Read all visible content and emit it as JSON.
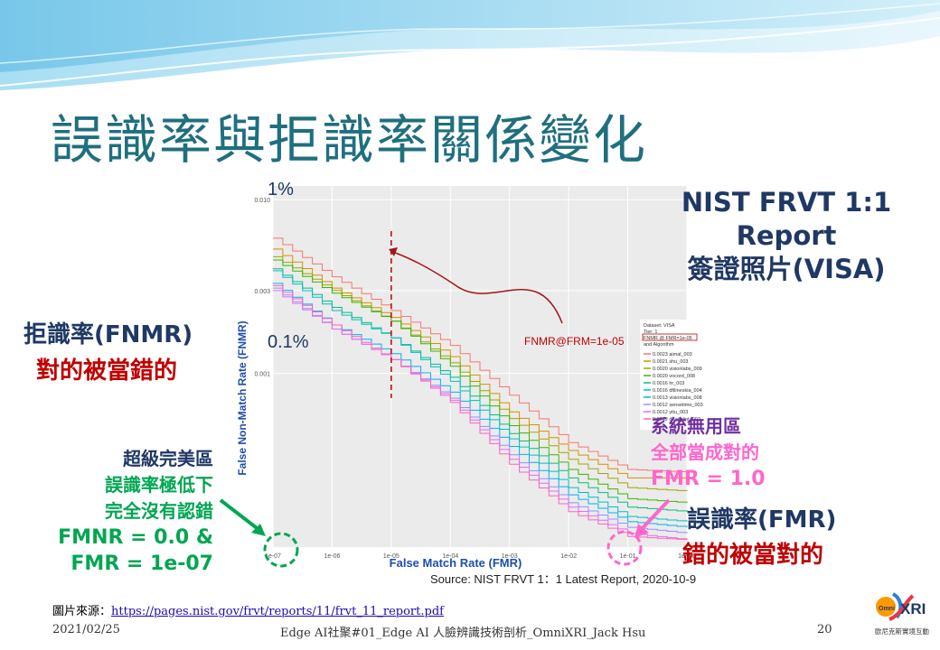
{
  "slide": {
    "title": "誤識率與拒識率關係變化",
    "nist_report": [
      "NIST FRVT 1:1",
      "Report",
      "簽證照片(VISA)"
    ],
    "left_axis_labels": {
      "fnmr_title": "拒識率(FNMR)",
      "fnmr_desc": "對的被當錯的"
    },
    "perfect_zone": [
      "超級完美區",
      "誤識率極低下",
      "完全沒有認錯",
      "FMNR = 0.0 &",
      "FMR = 1e-07"
    ],
    "useless_zone": [
      "系統無用區",
      "全部當成對的",
      "FMR = 1.0"
    ],
    "fmr_labels": {
      "fmr_title": "誤識率(FMR)",
      "fmr_desc": "錯的被當對的"
    },
    "image_source_label": "圖片來源：",
    "image_source_url": "https://pages.nist.gov/frvt/reports/11/frvt_11_report.pdf",
    "footer": {
      "date": "2021/02/25",
      "course": "Edge AI社聚#01_Edge AI 人臉辨識技術剖析_OmniXRI_Jack Hsu",
      "page": "20"
    },
    "logo": {
      "text_main": "XRI",
      "text_omni": "Omni",
      "caption": "歐尼克斯實境互動"
    },
    "colors": {
      "title": "#1f6f7f",
      "navy": "#1f3864",
      "red": "#c00000",
      "green": "#00a651",
      "pink": "#ff66cc",
      "purple": "#7030a0"
    }
  },
  "chart_data": {
    "type": "line",
    "title": "",
    "xlabel": "False Match Rate (FMR)",
    "ylabel": "False Non-Match Rate (FNMR)",
    "x_scale": "log",
    "y_scale": "log",
    "x_ticks": [
      "1e-07",
      "1e-06",
      "1e-05",
      "1e-04",
      "1e-03",
      "1e-02",
      "1e-01",
      "1e+00"
    ],
    "y_ticks": [
      "0.010",
      "0.003",
      "0.001"
    ],
    "y_tick_values": [
      0.01,
      0.003,
      0.001
    ],
    "xlim": [
      1e-07,
      1
    ],
    "ylim": [
      0.0001,
      0.012
    ],
    "annotations": {
      "one_percent": "1%",
      "point_one_percent": "0.1%",
      "operating_point": "FNMR@FRM=1e-05",
      "source": "Source: NIST FRVT 1：1  Latest Report, 2020-10-9"
    },
    "legend": {
      "header": [
        "Dataset: VISA",
        "Tier: 1",
        "FNMR @ FMR=1e-05",
        "and Algorithm"
      ],
      "placement": "right",
      "entries": [
        {
          "label": "0.0023  aimal_003",
          "color": "#f8766d"
        },
        {
          "label": "0.0021  shu_003",
          "color": "#d89000"
        },
        {
          "label": "0.0020  visionlabs_009",
          "color": "#a3a500"
        },
        {
          "label": "0.0020  vocord_008",
          "color": "#39b600"
        },
        {
          "label": "0.0016  hr_003",
          "color": "#00bf7d"
        },
        {
          "label": "0.0016  dfilineskia_004",
          "color": "#00bfc4"
        },
        {
          "label": "0.0013  visionlabs_008",
          "color": "#00b0f6"
        },
        {
          "label": "0.0012  sensetime_003",
          "color": "#9590ff"
        },
        {
          "label": "0.0012  yitu_003",
          "color": "#e76bf3"
        },
        {
          "label": "0.0012  deepglint_002",
          "color": "#ff62bc"
        }
      ]
    },
    "series": [
      {
        "color": "#f8766d",
        "x": [
          1e-07,
          1e-06,
          1e-05,
          0.0001,
          0.001,
          0.01,
          0.1,
          1
        ],
        "y": [
          0.006,
          0.0036,
          0.0023,
          0.00145,
          0.00075,
          0.0004,
          0.00028,
          0.00027
        ]
      },
      {
        "color": "#d89000",
        "x": [
          1e-07,
          1e-06,
          1e-05,
          0.0001,
          0.001,
          0.01,
          0.1,
          1
        ],
        "y": [
          0.0052,
          0.0031,
          0.0021,
          0.00125,
          0.0006,
          0.00036,
          0.00025,
          0.00025
        ]
      },
      {
        "color": "#a3a500",
        "x": [
          1e-07,
          1e-06,
          1e-05,
          0.0001,
          0.001,
          0.01,
          0.1,
          1
        ],
        "y": [
          0.0047,
          0.003,
          0.002,
          0.00115,
          0.00055,
          0.00032,
          0.00022,
          0.00021
        ]
      },
      {
        "color": "#39b600",
        "x": [
          1e-07,
          1e-06,
          1e-05,
          0.0001,
          0.001,
          0.01,
          0.1,
          1
        ],
        "y": [
          0.0045,
          0.0029,
          0.002,
          0.0011,
          0.0005,
          0.00028,
          0.00019,
          0.00018
        ]
      },
      {
        "color": "#00bf7d",
        "x": [
          1e-07,
          1e-06,
          1e-05,
          0.0001,
          0.001,
          0.01,
          0.1,
          1
        ],
        "y": [
          0.004,
          0.0024,
          0.0016,
          0.00095,
          0.00045,
          0.00025,
          0.00017,
          0.00016
        ]
      },
      {
        "color": "#00bfc4",
        "x": [
          1e-07,
          1e-06,
          1e-05,
          0.0001,
          0.001,
          0.01,
          0.1,
          1
        ],
        "y": [
          0.0039,
          0.0023,
          0.0016,
          0.0009,
          0.00042,
          0.00022,
          0.00015,
          0.00014
        ]
      },
      {
        "color": "#00b0f6",
        "x": [
          1e-07,
          1e-06,
          1e-05,
          0.0001,
          0.001,
          0.01,
          0.1,
          1
        ],
        "y": [
          0.0033,
          0.0019,
          0.0013,
          0.00078,
          0.00038,
          0.0002,
          0.00014,
          0.00013
        ]
      },
      {
        "color": "#9590ff",
        "x": [
          1e-07,
          1e-06,
          1e-05,
          0.0001,
          0.001,
          0.01,
          0.1,
          1
        ],
        "y": [
          0.0031,
          0.0018,
          0.0012,
          0.00072,
          0.00034,
          0.00018,
          0.00013,
          0.00012
        ]
      },
      {
        "color": "#e76bf3",
        "x": [
          1e-07,
          1e-06,
          1e-05,
          0.0001,
          0.001,
          0.01,
          0.1,
          1
        ],
        "y": [
          0.003,
          0.0018,
          0.0012,
          0.0007,
          0.00032,
          0.00017,
          0.00012,
          0.00011
        ]
      },
      {
        "color": "#ff62bc",
        "x": [
          1e-07,
          1e-06,
          1e-05,
          0.0001,
          0.001,
          0.01,
          0.1,
          1
        ],
        "y": [
          0.0032,
          0.0019,
          0.0012,
          0.00068,
          0.0003,
          0.00016,
          0.000115,
          0.00011
        ]
      }
    ],
    "grid": true
  }
}
